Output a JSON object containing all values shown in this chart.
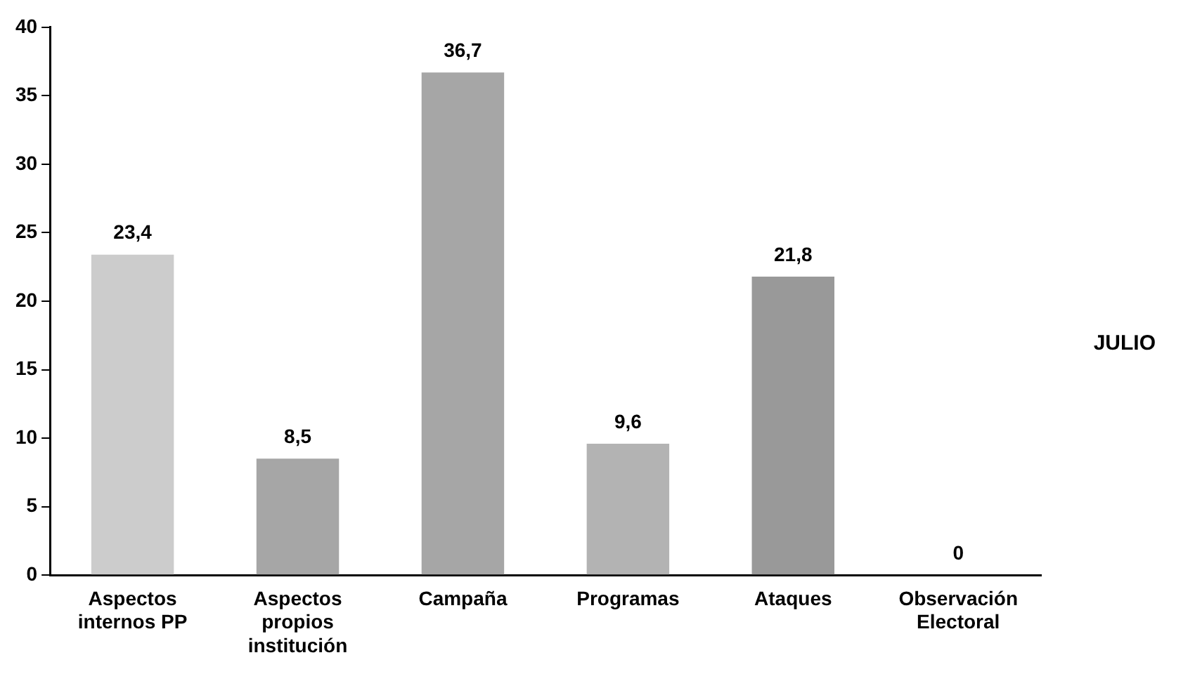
{
  "chart_data": {
    "type": "bar",
    "categories": [
      "Aspectos internos PP",
      "Aspectos propios institución",
      "Campaña",
      "Programas",
      "Ataques",
      "Observación Electoral"
    ],
    "series": [
      {
        "name": "JULIO",
        "values": [
          23.4,
          8.5,
          36.7,
          9.6,
          21.8,
          0
        ],
        "value_labels": [
          "23,4",
          "8,5",
          "36,7",
          "9,6",
          "21,8",
          "0"
        ],
        "colors": [
          "#cccccc",
          "#a6a6a6",
          "#a6a6a6",
          "#b3b3b3",
          "#999999",
          "#999999"
        ]
      }
    ],
    "ylim": [
      0,
      40
    ],
    "yticks": [
      0,
      5,
      10,
      15,
      20,
      25,
      30,
      35,
      40
    ],
    "grid": false,
    "legend": "right"
  }
}
